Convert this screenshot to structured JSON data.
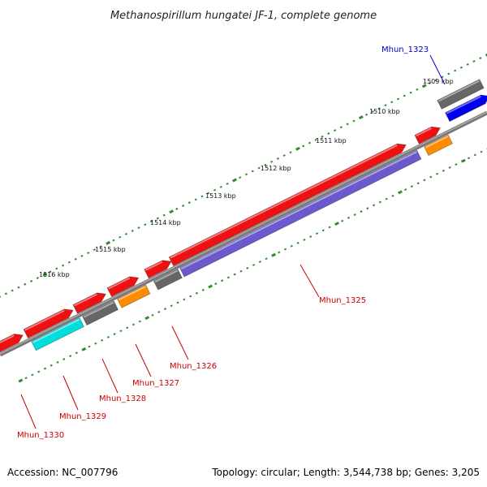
{
  "title": "Methanospirillum hungatei JF-1, complete genome",
  "footer": {
    "accession": "Accession: NC_007796",
    "summary": "Topology: circular; Length: 3,544,738 bp; Genes: 3,205"
  },
  "scale_labels": [
    "1509 kbp",
    "1510 kbp",
    "1511 kbp",
    "1512 kbp",
    "1513 kbp",
    "1514 kbp",
    "1515 kbp",
    "1516 kbp"
  ],
  "gene_labels": [
    {
      "text": "Mhun_1323",
      "color": "#0000cc"
    },
    {
      "text": "Mhun_1325",
      "color": "#cc0000"
    },
    {
      "text": "Mhun_1326",
      "color": "#cc0000"
    },
    {
      "text": "Mhun_1327",
      "color": "#cc0000"
    },
    {
      "text": "Mhun_1328",
      "color": "#cc0000"
    },
    {
      "text": "Mhun_1329",
      "color": "#cc0000"
    },
    {
      "text": "Mhun_1330",
      "color": "#cc0000"
    }
  ],
  "colors": {
    "backbone": "#888888",
    "tick": "#2e8b2e",
    "cds_forward": "#ee1111",
    "gene_gray": "#666666",
    "gene_blue": "#0000ee",
    "gene_orange": "#ff8c00",
    "gene_purple": "#6a5acd",
    "gene_cyan": "#00dddd",
    "label_red": "#cc0000",
    "label_blue": "#0000cc"
  }
}
